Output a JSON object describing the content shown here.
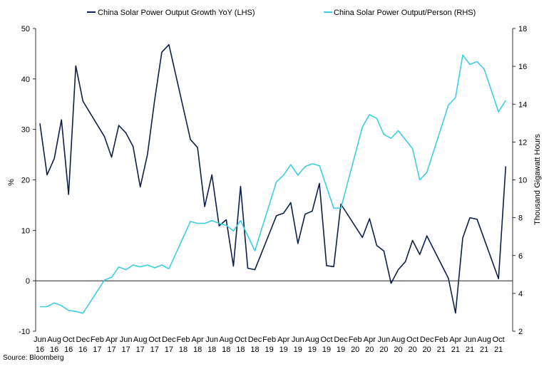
{
  "chart_data": {
    "type": "line",
    "x": [
      "Jun 16",
      "Jul 16",
      "Aug 16",
      "Sep 16",
      "Oct 16",
      "Nov 16",
      "Dec 16",
      "Jan 17",
      "Feb 17",
      "Mar 17",
      "Apr 17",
      "May 17",
      "Jun 17",
      "Jul 17",
      "Aug 17",
      "Sep 17",
      "Oct 17",
      "Nov 17",
      "Dec 17",
      "Jan 18",
      "Feb 18",
      "Mar 18",
      "Apr 18",
      "May 18",
      "Jun 18",
      "Jul 18",
      "Aug 18",
      "Sep 18",
      "Oct 18",
      "Nov 18",
      "Dec 18",
      "Jan 19",
      "Feb 19",
      "Mar 19",
      "Apr 19",
      "May 19",
      "Jun 19",
      "Jul 19",
      "Aug 19",
      "Sep 19",
      "Oct 19",
      "Nov 19",
      "Dec 19",
      "Jan 20",
      "Feb 20",
      "Mar 20",
      "Apr 20",
      "May 20",
      "Jun 20",
      "Jul 20",
      "Aug 20",
      "Sep 20",
      "Oct 20",
      "Nov 20",
      "Dec 20",
      "Jan 21",
      "Feb 21",
      "Mar 21",
      "Apr 21",
      "May 21",
      "Jun 21",
      "Jul 21",
      "Aug 21",
      "Sep 21",
      "Oct 21",
      "Nov 21"
    ],
    "x_tick_labels": [
      {
        "month": "Jun",
        "year": "16"
      },
      {
        "month": "Aug",
        "year": "16"
      },
      {
        "month": "Oct",
        "year": "16"
      },
      {
        "month": "Dec",
        "year": "16"
      },
      {
        "month": "Feb",
        "year": "17"
      },
      {
        "month": "Apr",
        "year": "17"
      },
      {
        "month": "Jun",
        "year": "17"
      },
      {
        "month": "Aug",
        "year": "17"
      },
      {
        "month": "Oct",
        "year": "17"
      },
      {
        "month": "Dec",
        "year": "17"
      },
      {
        "month": "Feb",
        "year": "18"
      },
      {
        "month": "Apr",
        "year": "18"
      },
      {
        "month": "Jun",
        "year": "18"
      },
      {
        "month": "Aug",
        "year": "18"
      },
      {
        "month": "Oct",
        "year": "18"
      },
      {
        "month": "Dec",
        "year": "18"
      },
      {
        "month": "Feb",
        "year": "19"
      },
      {
        "month": "Apr",
        "year": "19"
      },
      {
        "month": "Jun",
        "year": "19"
      },
      {
        "month": "Aug",
        "year": "19"
      },
      {
        "month": "Oct",
        "year": "19"
      },
      {
        "month": "Dec",
        "year": "19"
      },
      {
        "month": "Feb",
        "year": "20"
      },
      {
        "month": "Apr",
        "year": "20"
      },
      {
        "month": "Jun",
        "year": "20"
      },
      {
        "month": "Aug",
        "year": "20"
      },
      {
        "month": "Oct",
        "year": "20"
      },
      {
        "month": "Dec",
        "year": "20"
      },
      {
        "month": "Feb",
        "year": "21"
      },
      {
        "month": "Apr",
        "year": "21"
      },
      {
        "month": "Jun",
        "year": "21"
      },
      {
        "month": "Aug",
        "year": "21"
      },
      {
        "month": "Oct",
        "year": "21"
      }
    ],
    "series": [
      {
        "name": "China Solar Power Output Growth YoY (LHS)",
        "axis": "left",
        "color": "#0d1f4a",
        "values": [
          31.2,
          21.0,
          24.2,
          31.9,
          17.1,
          42.6,
          35.6,
          null,
          null,
          28.6,
          24.5,
          30.8,
          29.3,
          26.6,
          18.6,
          25.0,
          35.7,
          45.3,
          46.8,
          null,
          null,
          28.0,
          26.4,
          14.7,
          21.0,
          10.9,
          12.1,
          2.9,
          18.7,
          2.5,
          2.2,
          null,
          null,
          12.9,
          13.4,
          15.5,
          7.4,
          13.2,
          13.8,
          19.3,
          3.0,
          2.8,
          15.2,
          null,
          null,
          8.6,
          12.3,
          7.0,
          5.9,
          -0.5,
          2.2,
          3.8,
          8.0,
          5.2,
          8.9,
          null,
          null,
          0.5,
          -6.4,
          8.5,
          12.5,
          12.2,
          null,
          null,
          0.4,
          22.7
        ]
      },
      {
        "name": "China Solar Power Output/Person (RHS)",
        "axis": "right",
        "color": "#3ecde6",
        "values": [
          3.3,
          3.3,
          3.5,
          3.35,
          3.1,
          3.05,
          2.95,
          null,
          null,
          4.7,
          4.85,
          5.4,
          5.25,
          5.5,
          5.4,
          5.5,
          5.35,
          5.5,
          5.3,
          null,
          null,
          7.8,
          7.7,
          7.7,
          7.85,
          7.7,
          7.6,
          7.3,
          7.85,
          null,
          6.25,
          null,
          null,
          9.9,
          10.25,
          10.8,
          10.25,
          10.7,
          10.85,
          10.75,
          null,
          8.5,
          8.5,
          null,
          null,
          12.8,
          13.45,
          13.25,
          12.4,
          12.2,
          12.6,
          null,
          11.65,
          10.0,
          10.4,
          null,
          null,
          13.95,
          14.35,
          16.6,
          16.1,
          16.25,
          15.85,
          null,
          13.6,
          14.2
        ]
      }
    ],
    "left_axis": {
      "label": "%",
      "min": -10,
      "max": 50,
      "ticks": [
        "50",
        "40",
        "30",
        "20",
        "10",
        "0",
        "-10"
      ]
    },
    "right_axis": {
      "label": "Thousand Gigawatt Hours",
      "min": 2,
      "max": 18,
      "ticks": [
        "18",
        "16",
        "14",
        "12",
        "10",
        "8",
        "6",
        "4",
        "2"
      ]
    },
    "legend": {
      "position": "top",
      "entries": [
        "China Solar Power Output Growth YoY (LHS)",
        "China Solar Power Output/Person (RHS)"
      ]
    },
    "grid": false
  },
  "source": "Source: Bloomberg"
}
